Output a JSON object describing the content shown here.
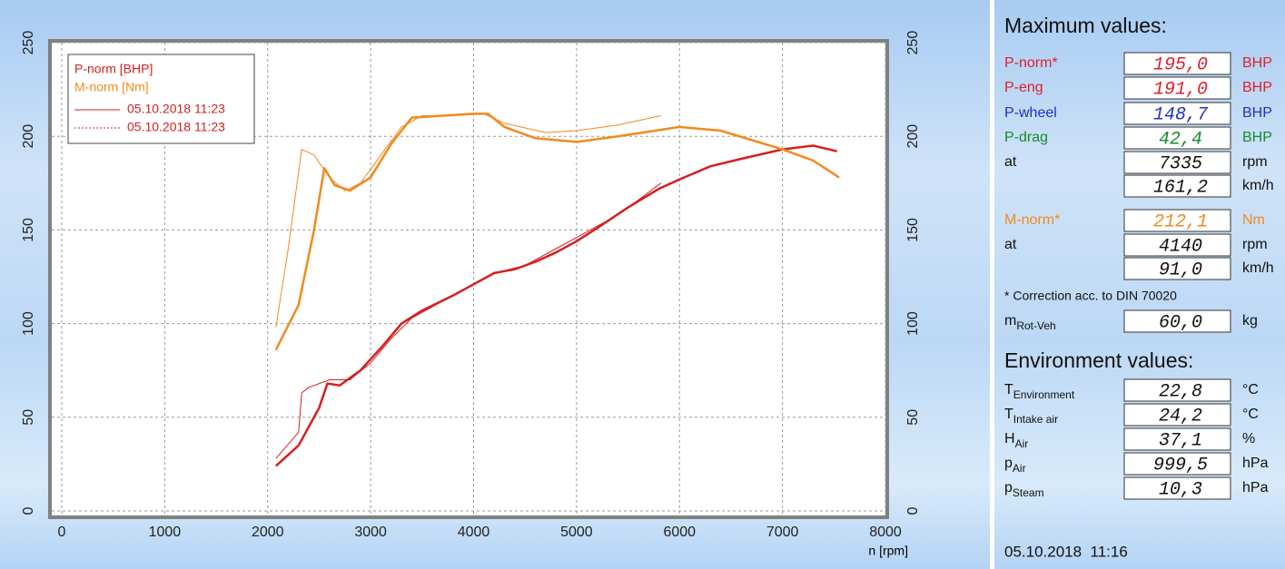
{
  "chart_data": {
    "type": "line",
    "xlabel": "n [rpm]",
    "xlim": [
      0,
      8000
    ],
    "xticks": [
      0,
      1000,
      2000,
      3000,
      4000,
      5000,
      6000,
      7000,
      8000
    ],
    "ylim": [
      0,
      250
    ],
    "yticks": [
      0,
      50,
      100,
      150,
      200,
      250
    ],
    "y2lim": [
      0,
      250
    ],
    "y2ticks": [
      0,
      50,
      100,
      150,
      200,
      250
    ],
    "grid": true,
    "legend": {
      "labels": [
        "P-norm [BHP]",
        "M-norm [Nm]"
      ],
      "runs": [
        "05.10.2018 11:23",
        "05.10.2018 11:23"
      ]
    },
    "series": [
      {
        "color": "#d42020",
        "width": 2.5,
        "axis": "y",
        "x": [
          2080,
          2300,
          2500,
          2580,
          2700,
          2900,
          3100,
          3300,
          3500,
          3800,
          4000,
          4200,
          4400,
          4600,
          4800,
          5000,
          5200,
          5500,
          5800,
          6000,
          6300,
          6600,
          7000,
          7300,
          7530
        ],
        "values": [
          24,
          35,
          55,
          68,
          67,
          75,
          87,
          100,
          107,
          115,
          121,
          127,
          129,
          133,
          138,
          144,
          151,
          162,
          172,
          177,
          184,
          188,
          193,
          195,
          192
        ]
      },
      {
        "color": "#d42020",
        "width": 1,
        "axis": "y",
        "x": [
          2080,
          2300,
          2330,
          2400,
          2600,
          2800,
          3000,
          3200,
          3400,
          3700,
          4000,
          4200,
          4500,
          4800,
          5000,
          5300,
          5600,
          5820
        ],
        "values": [
          28,
          42,
          63,
          66,
          70,
          70,
          79,
          92,
          103,
          112,
          121,
          127,
          131,
          140,
          146,
          155,
          166,
          175
        ]
      },
      {
        "color": "#f08a1e",
        "width": 2.5,
        "axis": "y2",
        "x": [
          2080,
          2300,
          2450,
          2550,
          2650,
          2800,
          3000,
          3200,
          3400,
          3700,
          4000,
          4140,
          4300,
          4600,
          5000,
          5400,
          6000,
          6400,
          7000,
          7300,
          7550
        ],
        "values": [
          86,
          110,
          150,
          183,
          174,
          171,
          178,
          196,
          210,
          211,
          212,
          212,
          205,
          199,
          197,
          200,
          205,
          203,
          193,
          187,
          178
        ]
      },
      {
        "color": "#f08a1e",
        "width": 1,
        "axis": "y2",
        "x": [
          2080,
          2200,
          2330,
          2450,
          2600,
          2750,
          2900,
          3100,
          3300,
          3500,
          3800,
          4100,
          4300,
          4700,
          5000,
          5400,
          5820
        ],
        "values": [
          98,
          140,
          193,
          190,
          178,
          171,
          175,
          190,
          205,
          211,
          211,
          212,
          207,
          202,
          203,
          206,
          211
        ]
      }
    ]
  },
  "panel": {
    "max_title": "Maximum values:",
    "max_rows": [
      {
        "label": "P-norm*",
        "value": "195,0",
        "unit": "BHP",
        "color": "#e0202a"
      },
      {
        "label": "P-eng",
        "value": "191,0",
        "unit": "BHP",
        "color": "#e0202a"
      },
      {
        "label": "P-wheel",
        "value": "148,7",
        "unit": "BHP",
        "color": "#2030c8"
      },
      {
        "label": "P-drag",
        "value": "42,4",
        "unit": "BHP",
        "color": "#1a8a2a"
      },
      {
        "label": "at",
        "value": "7335",
        "unit": "rpm",
        "color": "#111111"
      },
      {
        "value": "161,2",
        "unit": "km/h",
        "color": "#111111"
      }
    ],
    "torque_rows": [
      {
        "label": "M-norm*",
        "value": "212,1",
        "unit": "Nm",
        "color": "#f08a1e"
      },
      {
        "label": "at",
        "value": "4140",
        "unit": "rpm",
        "color": "#111111"
      },
      {
        "value": "91,0",
        "unit": "km/h",
        "color": "#111111"
      }
    ],
    "note": "* Correction acc. to DIN 70020",
    "mass_row": {
      "label": {
        "main": "m",
        "sub": "Rot-Veh"
      },
      "value": "60,0",
      "unit": "kg"
    },
    "env_title": "Environment values:",
    "env_rows": [
      {
        "label": {
          "main": "T",
          "sub": "Environment"
        },
        "value": "22,8",
        "unit": "°C"
      },
      {
        "label": {
          "main": "T",
          "sub": "Intake air"
        },
        "value": "24,2",
        "unit": "°C"
      },
      {
        "label": {
          "main": "H",
          "sub": "Air"
        },
        "value": "37,1",
        "unit": "%"
      },
      {
        "label": {
          "main": "p",
          "sub": "Air"
        },
        "value": "999,5",
        "unit": "hPa"
      },
      {
        "label": {
          "main": "p",
          "sub": "Steam"
        },
        "value": "10,3",
        "unit": "hPa"
      }
    ],
    "timestamp": "05.10.2018  11:16"
  }
}
